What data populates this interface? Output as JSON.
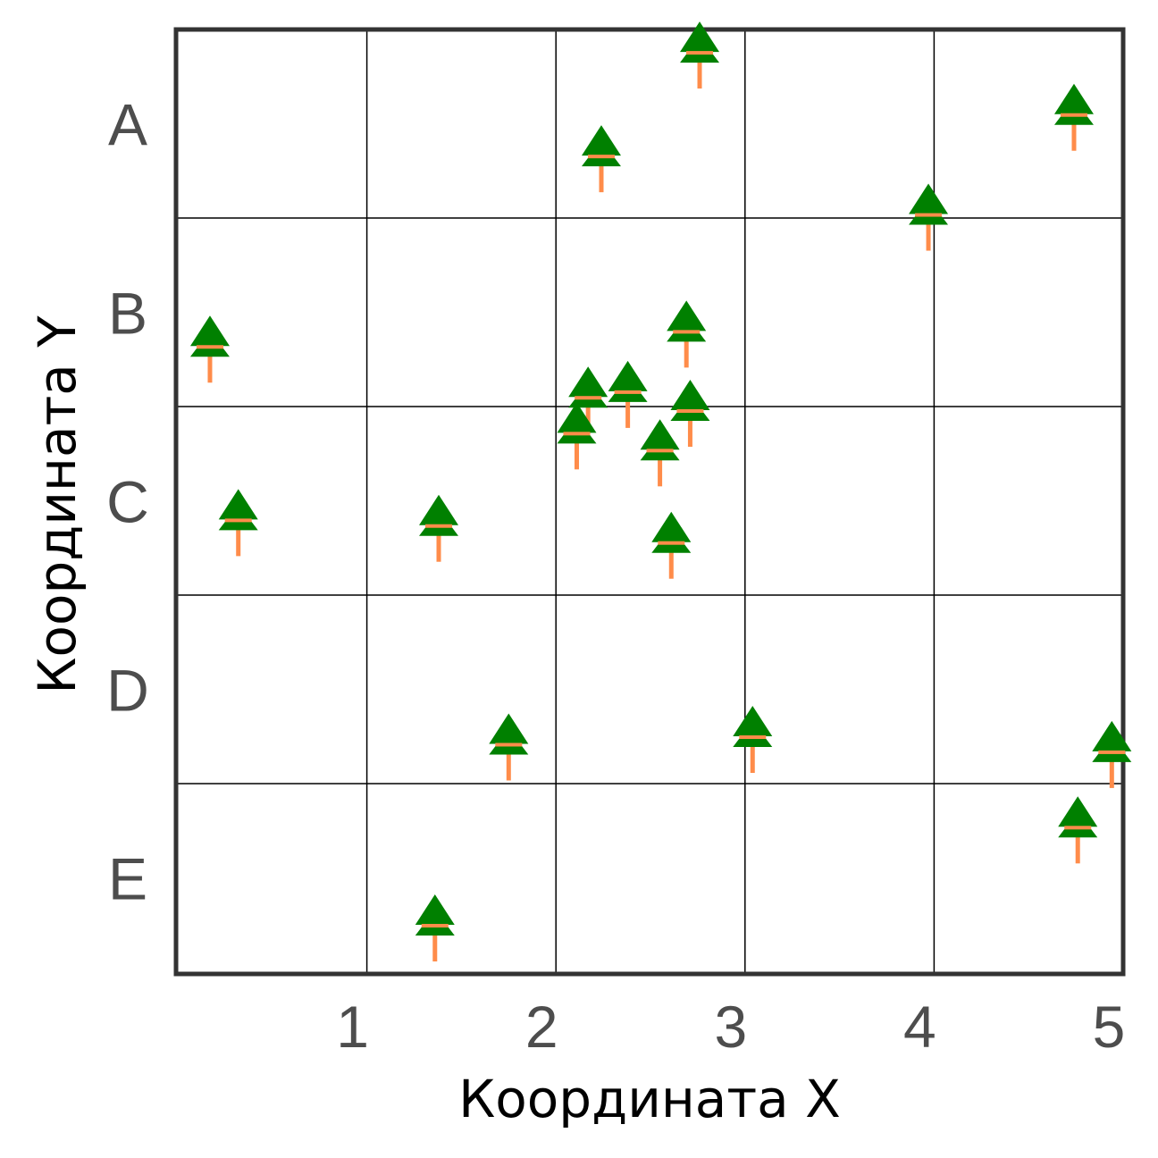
{
  "chart_data": {
    "type": "scatter",
    "title": "",
    "xlabel": "Координата X",
    "ylabel": "Координата Y",
    "xlim": [
      0,
      5
    ],
    "ylim": [
      0,
      5
    ],
    "x_ticks": [
      {
        "label": "1",
        "value": 1
      },
      {
        "label": "2",
        "value": 2
      },
      {
        "label": "3",
        "value": 3
      },
      {
        "label": "4",
        "value": 4
      },
      {
        "label": "5",
        "value": 5
      }
    ],
    "y_ticks": [
      {
        "label": "A",
        "value": 4.5
      },
      {
        "label": "B",
        "value": 3.5
      },
      {
        "label": "C",
        "value": 2.5
      },
      {
        "label": "D",
        "value": 1.5
      },
      {
        "label": "E",
        "value": 0.5
      }
    ],
    "grid": true,
    "marker": "tree-icon",
    "marker_colors": {
      "crown": "#008000",
      "trunk": "#ff8c4a"
    },
    "points": [
      {
        "x": 2.76,
        "y": 4.9
      },
      {
        "x": 4.74,
        "y": 4.57
      },
      {
        "x": 2.24,
        "y": 4.35
      },
      {
        "x": 3.97,
        "y": 4.04
      },
      {
        "x": 0.17,
        "y": 3.34
      },
      {
        "x": 2.69,
        "y": 3.42
      },
      {
        "x": 2.17,
        "y": 3.07
      },
      {
        "x": 2.38,
        "y": 3.1
      },
      {
        "x": 2.71,
        "y": 3.0
      },
      {
        "x": 2.11,
        "y": 2.88
      },
      {
        "x": 2.55,
        "y": 2.79
      },
      {
        "x": 0.32,
        "y": 2.42
      },
      {
        "x": 1.38,
        "y": 2.39
      },
      {
        "x": 2.61,
        "y": 2.3
      },
      {
        "x": 1.75,
        "y": 1.23
      },
      {
        "x": 3.04,
        "y": 1.27
      },
      {
        "x": 4.94,
        "y": 1.19
      },
      {
        "x": 4.76,
        "y": 0.79
      },
      {
        "x": 1.36,
        "y": 0.27
      }
    ]
  }
}
